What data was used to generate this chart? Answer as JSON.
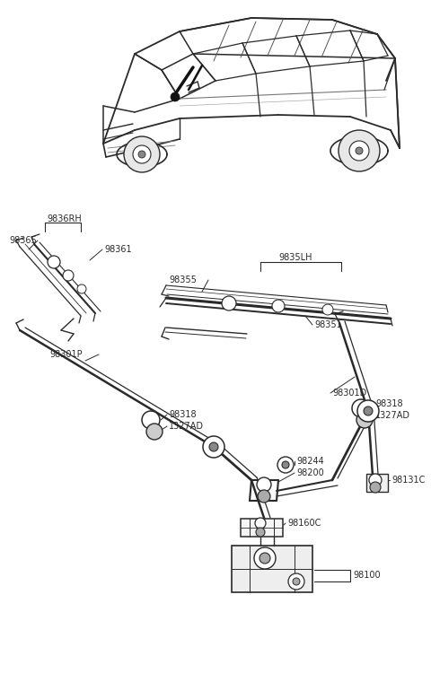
{
  "bg_color": "#ffffff",
  "line_color": "#2a2a2a",
  "label_color": "#2a2a2a",
  "fontsize": 7.0,
  "fig_w": 4.8,
  "fig_h": 7.6,
  "dpi": 100,
  "xlim": [
    0,
    480
  ],
  "ylim": [
    0,
    760
  ]
}
